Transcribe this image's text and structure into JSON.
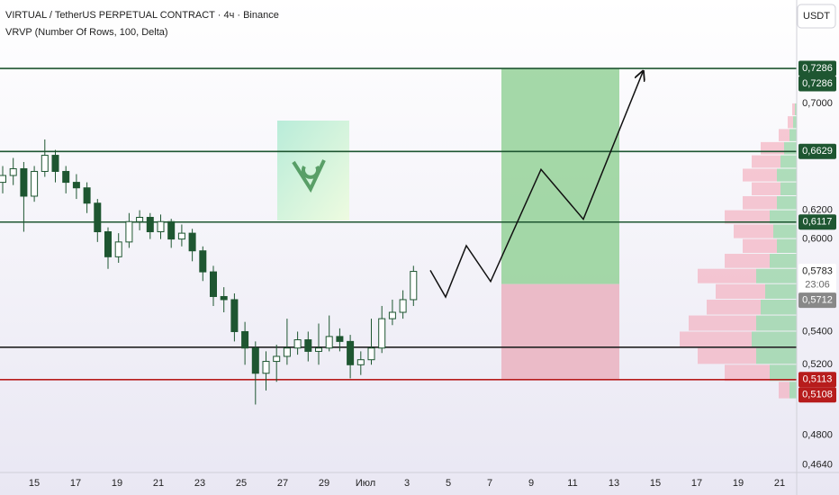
{
  "chart_data": {
    "type": "candlestick",
    "title": "VIRTUAL / TetherUS PERPETUAL CONTRACT · 4ч · Binance",
    "subtitle": "VRVP (Number Of Rows, 100, Delta)",
    "currency": "USDT",
    "log_scale": true,
    "ylim": [
      0.46,
      0.7876
    ],
    "yticks": [
      {
        "value": 0.7,
        "label": "0,7000"
      },
      {
        "value": 0.62,
        "label": "0,6200"
      },
      {
        "value": 0.6,
        "label": "0,6000"
      },
      {
        "value": 0.54,
        "label": "0,5400"
      },
      {
        "value": 0.52,
        "label": "0,5200"
      },
      {
        "value": 0.48,
        "label": "0,4800"
      },
      {
        "value": 0.464,
        "label": "0,4640"
      }
    ],
    "x_labels": [
      "15",
      "17",
      "19",
      "21",
      "23",
      "25",
      "27",
      "29",
      "Июл",
      "3",
      "5",
      "7",
      "9",
      "11",
      "13",
      "15",
      "17",
      "19",
      "21"
    ],
    "up_color": "#1e5631",
    "down_color": "#1e5631",
    "open": [
      0.64,
      0.645,
      0.65,
      0.63,
      0.648,
      0.66,
      0.648,
      0.64,
      0.636,
      0.625,
      0.605,
      0.588,
      0.598,
      0.612,
      0.615,
      0.605,
      0.612,
      0.6,
      0.604,
      0.592,
      0.578,
      0.562,
      0.56,
      0.54,
      0.53,
      0.515,
      0.522,
      0.525,
      0.53,
      0.535,
      0.528,
      0.53,
      0.537,
      0.534,
      0.52,
      0.523,
      0.53,
      0.548,
      0.552,
      0.56
    ],
    "high": [
      0.652,
      0.658,
      0.655,
      0.652,
      0.672,
      0.664,
      0.652,
      0.646,
      0.64,
      0.628,
      0.608,
      0.604,
      0.618,
      0.62,
      0.618,
      0.617,
      0.614,
      0.61,
      0.607,
      0.595,
      0.582,
      0.568,
      0.564,
      0.546,
      0.534,
      0.528,
      0.532,
      0.548,
      0.54,
      0.54,
      0.545,
      0.55,
      0.542,
      0.538,
      0.528,
      0.548,
      0.556,
      0.56,
      0.566,
      0.582
    ],
    "low": [
      0.632,
      0.638,
      0.605,
      0.626,
      0.644,
      0.64,
      0.632,
      0.628,
      0.618,
      0.598,
      0.58,
      0.584,
      0.594,
      0.606,
      0.6,
      0.6,
      0.594,
      0.595,
      0.585,
      0.572,
      0.556,
      0.552,
      0.534,
      0.52,
      0.497,
      0.505,
      0.51,
      0.52,
      0.526,
      0.522,
      0.52,
      0.528,
      0.528,
      0.512,
      0.514,
      0.52,
      0.527,
      0.544,
      0.548,
      0.556
    ],
    "close": [
      0.645,
      0.65,
      0.63,
      0.648,
      0.66,
      0.648,
      0.64,
      0.636,
      0.625,
      0.605,
      0.588,
      0.598,
      0.612,
      0.615,
      0.605,
      0.612,
      0.6,
      0.604,
      0.592,
      0.578,
      0.562,
      0.56,
      0.54,
      0.53,
      0.515,
      0.522,
      0.525,
      0.53,
      0.535,
      0.528,
      0.53,
      0.537,
      0.534,
      0.52,
      0.523,
      0.53,
      0.548,
      0.552,
      0.56,
      0.5783
    ],
    "levels": [
      {
        "value": 0.7286,
        "color": "#1e5631"
      },
      {
        "value": 0.6629,
        "color": "#1e5631"
      },
      {
        "value": 0.6117,
        "color": "#1e5631"
      },
      {
        "value": 0.5305,
        "color": "#222222"
      },
      {
        "value": 0.5113,
        "color": "#b71c1c"
      }
    ],
    "position": {
      "target": 0.7286,
      "entry": 0.57,
      "stop": 0.5113
    },
    "projection": [
      0.579,
      0.5617,
      0.5955,
      0.5717,
      0.6495,
      0.6137,
      0.7256
    ],
    "volume_profile": {
      "prices": [
        0.5,
        0.51,
        0.52,
        0.53,
        0.54,
        0.55,
        0.56,
        0.57,
        0.58,
        0.59,
        0.6,
        0.61,
        0.62,
        0.63,
        0.64,
        0.65,
        0.66,
        0.67,
        0.68,
        0.69
      ],
      "up": [
        8,
        30,
        45,
        50,
        45,
        40,
        35,
        45,
        30,
        22,
        26,
        30,
        22,
        18,
        22,
        18,
        14,
        8,
        4,
        2
      ],
      "down": [
        12,
        50,
        65,
        80,
        75,
        60,
        55,
        65,
        50,
        38,
        44,
        50,
        38,
        32,
        38,
        32,
        26,
        12,
        6,
        3
      ]
    },
    "price_tags": [
      {
        "value": 0.7286,
        "label": "0,7286",
        "bg": "#1e5631",
        "fg": "#ffffff"
      },
      {
        "value": 0.7286,
        "label": "0,7286",
        "bg": "#1e5631",
        "fg": "#ffffff"
      },
      {
        "value": 0.6629,
        "label": "0,6629",
        "bg": "#1e5631",
        "fg": "#ffffff"
      },
      {
        "value": 0.6117,
        "label": "0,6117",
        "bg": "#1e5631",
        "fg": "#ffffff"
      },
      {
        "value": 0.5783,
        "label": "0,5783",
        "bg": "#ffffff",
        "fg": "#222222",
        "sub": "23:06"
      },
      {
        "value": 0.5712,
        "label": "0,5712",
        "bg": "#888888",
        "fg": "#ffffff"
      },
      {
        "value": 0.5113,
        "label": "0,5113",
        "bg": "#b71c1c",
        "fg": "#ffffff"
      },
      {
        "value": 0.5108,
        "label": "0,5108",
        "bg": "#b71c1c",
        "fg": "#ffffff"
      }
    ]
  }
}
